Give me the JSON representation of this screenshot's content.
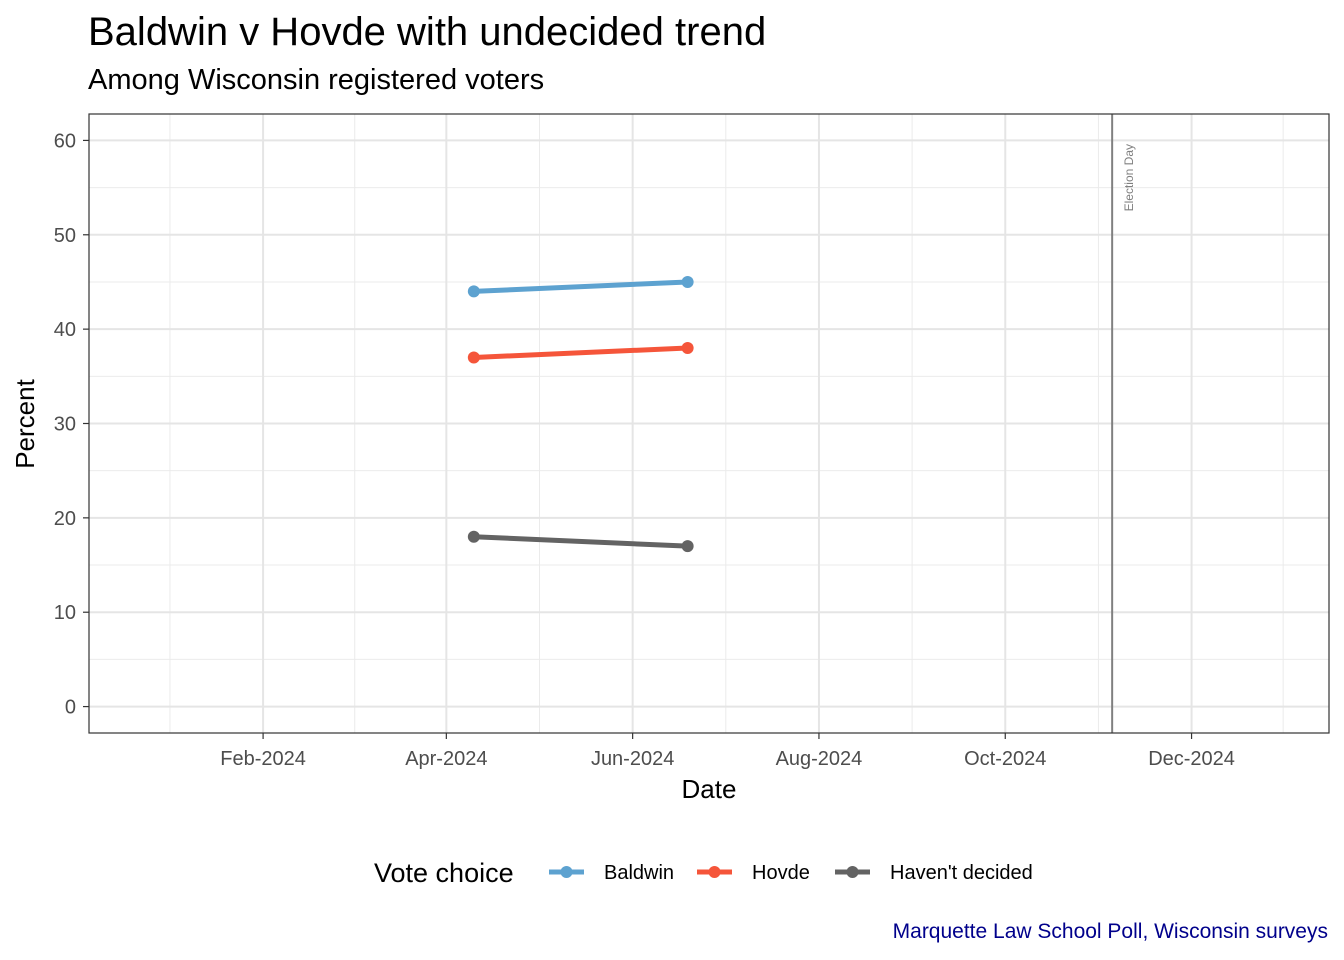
{
  "chart_data": {
    "type": "line",
    "title": "Baldwin v Hovde with undecided trend",
    "subtitle": "Among Wisconsin registered voters",
    "xlabel": "Date",
    "ylabel": "Percent",
    "caption": "Marquette Law School Poll, Wisconsin surveys",
    "x_range": [
      "2023-12-06",
      "2025-01-15"
    ],
    "x_ticks": [
      {
        "date": "2024-02-01",
        "label": "Feb-2024"
      },
      {
        "date": "2024-04-01",
        "label": "Apr-2024"
      },
      {
        "date": "2024-06-01",
        "label": "Jun-2024"
      },
      {
        "date": "2024-08-01",
        "label": "Aug-2024"
      },
      {
        "date": "2024-10-01",
        "label": "Oct-2024"
      },
      {
        "date": "2024-12-01",
        "label": "Dec-2024"
      }
    ],
    "ylim": [
      -2.8,
      62.8
    ],
    "y_ticks": [
      0,
      10,
      20,
      30,
      40,
      50,
      60
    ],
    "grid": true,
    "legend": {
      "title": "Vote choice",
      "position": "bottom"
    },
    "x": [
      "2024-04-10",
      "2024-06-19"
    ],
    "series": [
      {
        "name": "Baldwin",
        "color": "#5DA2D0",
        "values": [
          44,
          45
        ]
      },
      {
        "name": "Hovde",
        "color": "#F5553A",
        "values": [
          37,
          38
        ]
      },
      {
        "name": "Haven't decided",
        "color": "#636363",
        "values": [
          18,
          17
        ]
      }
    ],
    "vlines": [
      {
        "date": "2024-11-05",
        "label": "Election Day",
        "color": "#808080"
      }
    ]
  }
}
